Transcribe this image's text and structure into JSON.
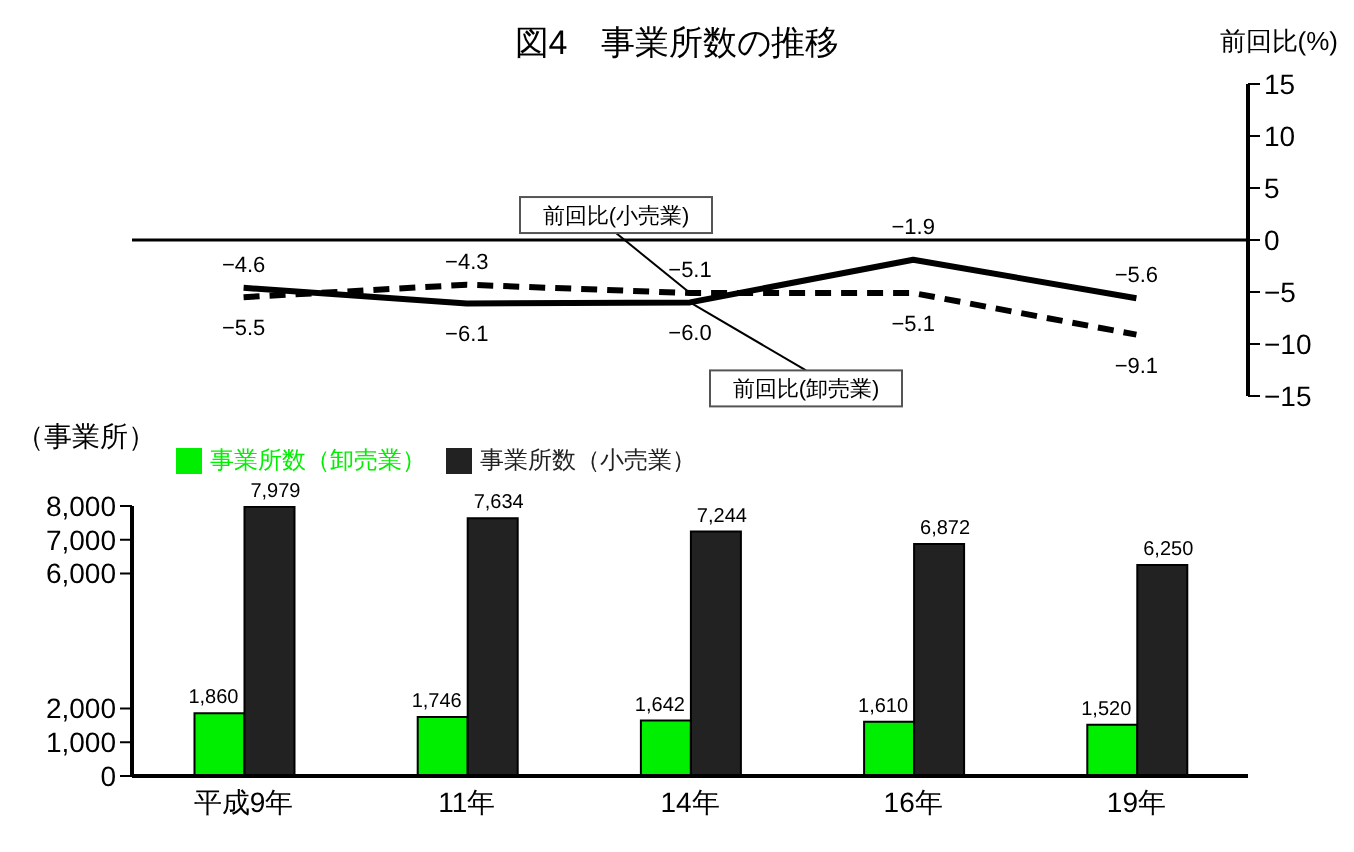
{
  "chart_data": [
    {
      "type": "line",
      "title": "図4　事業所数の推移",
      "ylabel": "前回比(%)",
      "categories": [
        null,
        null,
        null,
        null,
        null
      ],
      "series": [
        {
          "name": "前回比(卸売業)",
          "color": "#000000",
          "line_style": "solid",
          "values": [
            -4.6,
            -6.1,
            -6.0,
            -1.9,
            -5.6
          ],
          "value_labels": [
            "−4.6",
            "−6.1",
            "−6.0",
            "−1.9",
            "−5.6"
          ]
        },
        {
          "name": "前回比(小売業)",
          "color": "#000000",
          "line_style": "dashed",
          "values": [
            -5.5,
            -4.3,
            -5.1,
            -5.1,
            -9.1
          ],
          "value_labels": [
            "−5.5",
            "−4.3",
            "−5.1",
            "−5.1",
            "−9.1"
          ]
        }
      ],
      "ylim": [
        -15,
        15
      ],
      "yticks": [
        {
          "value": -15,
          "label": "−15"
        },
        {
          "value": -10,
          "label": "−10"
        },
        {
          "value": -5,
          "label": "−5"
        },
        0,
        5,
        10,
        15
      ],
      "tick_labels": "y",
      "marker": "none",
      "ref_lines": [
        {
          "axis": "y",
          "value": 0,
          "color": "#000000"
        }
      ]
    },
    {
      "type": "bar",
      "ylabel": "（事業所）",
      "categories": [
        "平成9年",
        "11年",
        "14年",
        "16年",
        "19年"
      ],
      "series": [
        {
          "name": "事業所数（卸売業）",
          "color": "#00ee00",
          "values": [
            1860,
            1746,
            1642,
            1610,
            1520
          ],
          "value_labels": [
            "1,860",
            "1,746",
            "1,642",
            "1,610",
            "1,520"
          ]
        },
        {
          "name": "事業所数（小売業）",
          "color": "#222222",
          "values": [
            7979,
            7634,
            7244,
            6872,
            6250
          ],
          "value_labels": [
            "7,979",
            "7,634",
            "7,244",
            "6,872",
            "6,250"
          ]
        }
      ],
      "ylim": [
        0,
        8000
      ],
      "yticks": [
        0,
        {
          "value": 1000,
          "label": "1,000"
        },
        {
          "value": 2000,
          "label": "2,000"
        },
        {
          "value": 6000,
          "label": "6,000"
        },
        {
          "value": 7000,
          "label": "7,000"
        },
        {
          "value": 8000,
          "label": "8,000"
        }
      ],
      "legend": "top left"
    }
  ]
}
